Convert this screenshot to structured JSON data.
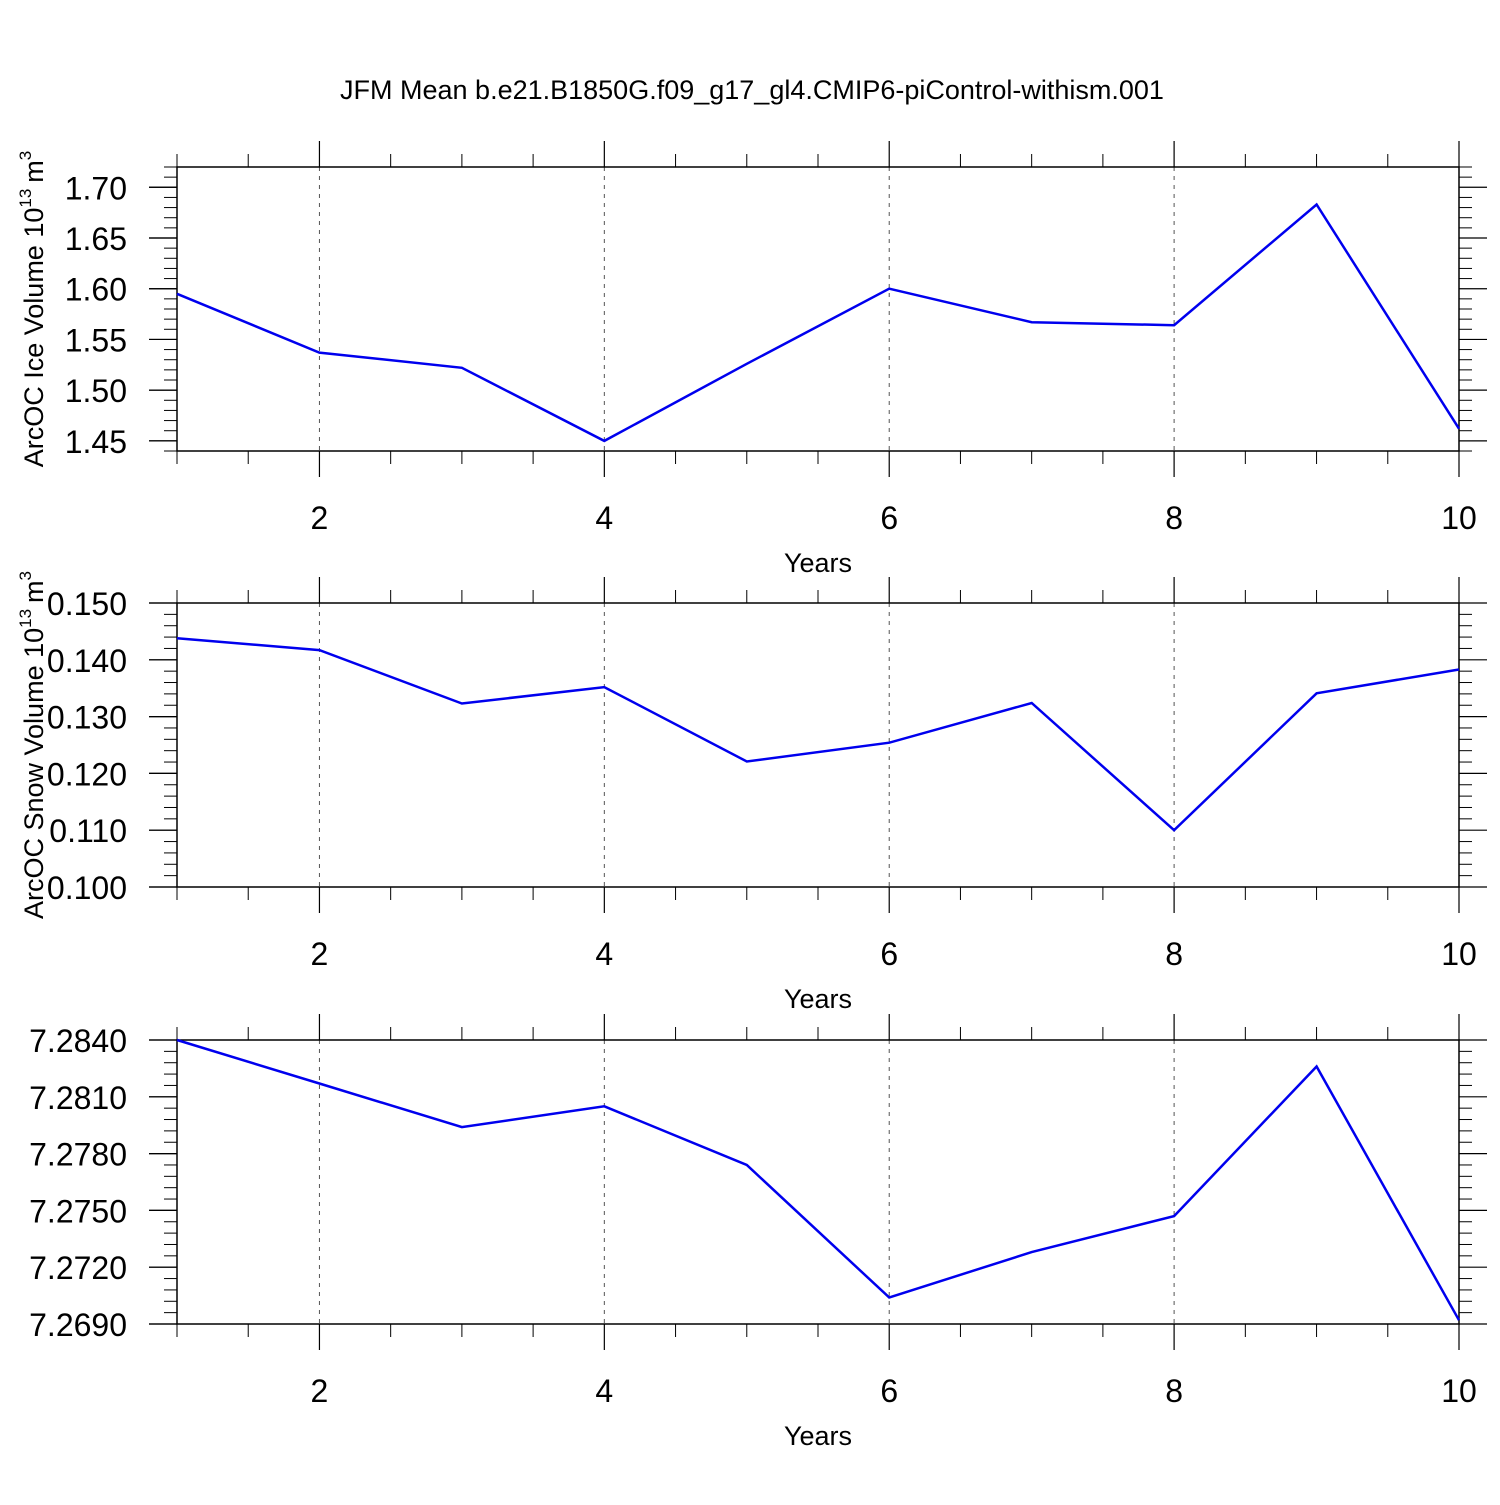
{
  "title": "JFM Mean b.e21.B1850G.f09_g17_gl4.CMIP6-piControl-withism.001",
  "chart_data": [
    {
      "type": "line",
      "title": "",
      "xlabel": "Years",
      "ylabel": "ArcOC Ice Volume 10",
      "ylabel_exp": "13",
      "ylabel_unit": "m",
      "ylabel_unit_exp": "3",
      "xlim": [
        1,
        10
      ],
      "ylim": [
        1.44,
        1.72
      ],
      "x_ticks": [
        "2",
        "4",
        "6",
        "8",
        "10"
      ],
      "x_tick_values": [
        2,
        4,
        6,
        8,
        10
      ],
      "y_ticks": [
        "1.45",
        "1.50",
        "1.55",
        "1.60",
        "1.65",
        "1.70"
      ],
      "y_tick_values": [
        1.45,
        1.5,
        1.55,
        1.6,
        1.65,
        1.7
      ],
      "grid": "vertical dashed at major x ticks",
      "series": [
        {
          "color": "#0000ee",
          "x": [
            1,
            2,
            3,
            4,
            5,
            6,
            7,
            8,
            9,
            10
          ],
          "values": [
            1.595,
            1.537,
            1.522,
            1.45,
            1.526,
            1.6,
            1.567,
            1.564,
            1.683,
            1.462
          ]
        }
      ]
    },
    {
      "type": "line",
      "title": "",
      "xlabel": "Years",
      "ylabel": "ArcOC Snow Volume 10",
      "ylabel_exp": "13",
      "ylabel_unit": "m",
      "ylabel_unit_exp": "3",
      "xlim": [
        1,
        10
      ],
      "ylim": [
        0.1,
        0.15
      ],
      "x_ticks": [
        "2",
        "4",
        "6",
        "8",
        "10"
      ],
      "x_tick_values": [
        2,
        4,
        6,
        8,
        10
      ],
      "y_ticks": [
        "0.100",
        "0.110",
        "0.120",
        "0.130",
        "0.140",
        "0.150"
      ],
      "y_tick_values": [
        0.1,
        0.11,
        0.12,
        0.13,
        0.14,
        0.15
      ],
      "grid": "vertical dashed at major x ticks",
      "series": [
        {
          "color": "#0000ee",
          "x": [
            1,
            2,
            3,
            4,
            5,
            6,
            7,
            8,
            9,
            10
          ],
          "values": [
            0.1438,
            0.1417,
            0.1323,
            0.1352,
            0.1221,
            0.1254,
            0.1324,
            0.11,
            0.1341,
            0.1383
          ]
        }
      ]
    },
    {
      "type": "line",
      "title": "",
      "xlabel": "Years",
      "ylabel": "",
      "xlim": [
        1,
        10
      ],
      "ylim": [
        7.269,
        7.284
      ],
      "x_ticks": [
        "2",
        "4",
        "6",
        "8",
        "10"
      ],
      "x_tick_values": [
        2,
        4,
        6,
        8,
        10
      ],
      "y_ticks": [
        "7.2690",
        "7.2720",
        "7.2750",
        "7.2780",
        "7.2810",
        "7.2840"
      ],
      "y_tick_values": [
        7.269,
        7.272,
        7.275,
        7.278,
        7.281,
        7.284
      ],
      "grid": "vertical dashed at major x ticks",
      "series": [
        {
          "color": "#0000ee",
          "x": [
            1,
            2,
            3,
            4,
            5,
            6,
            7,
            8,
            9,
            10
          ],
          "values": [
            7.284,
            7.2817,
            7.2794,
            7.2805,
            7.2774,
            7.2704,
            7.2728,
            7.2747,
            7.2826,
            7.2692
          ]
        }
      ]
    }
  ]
}
